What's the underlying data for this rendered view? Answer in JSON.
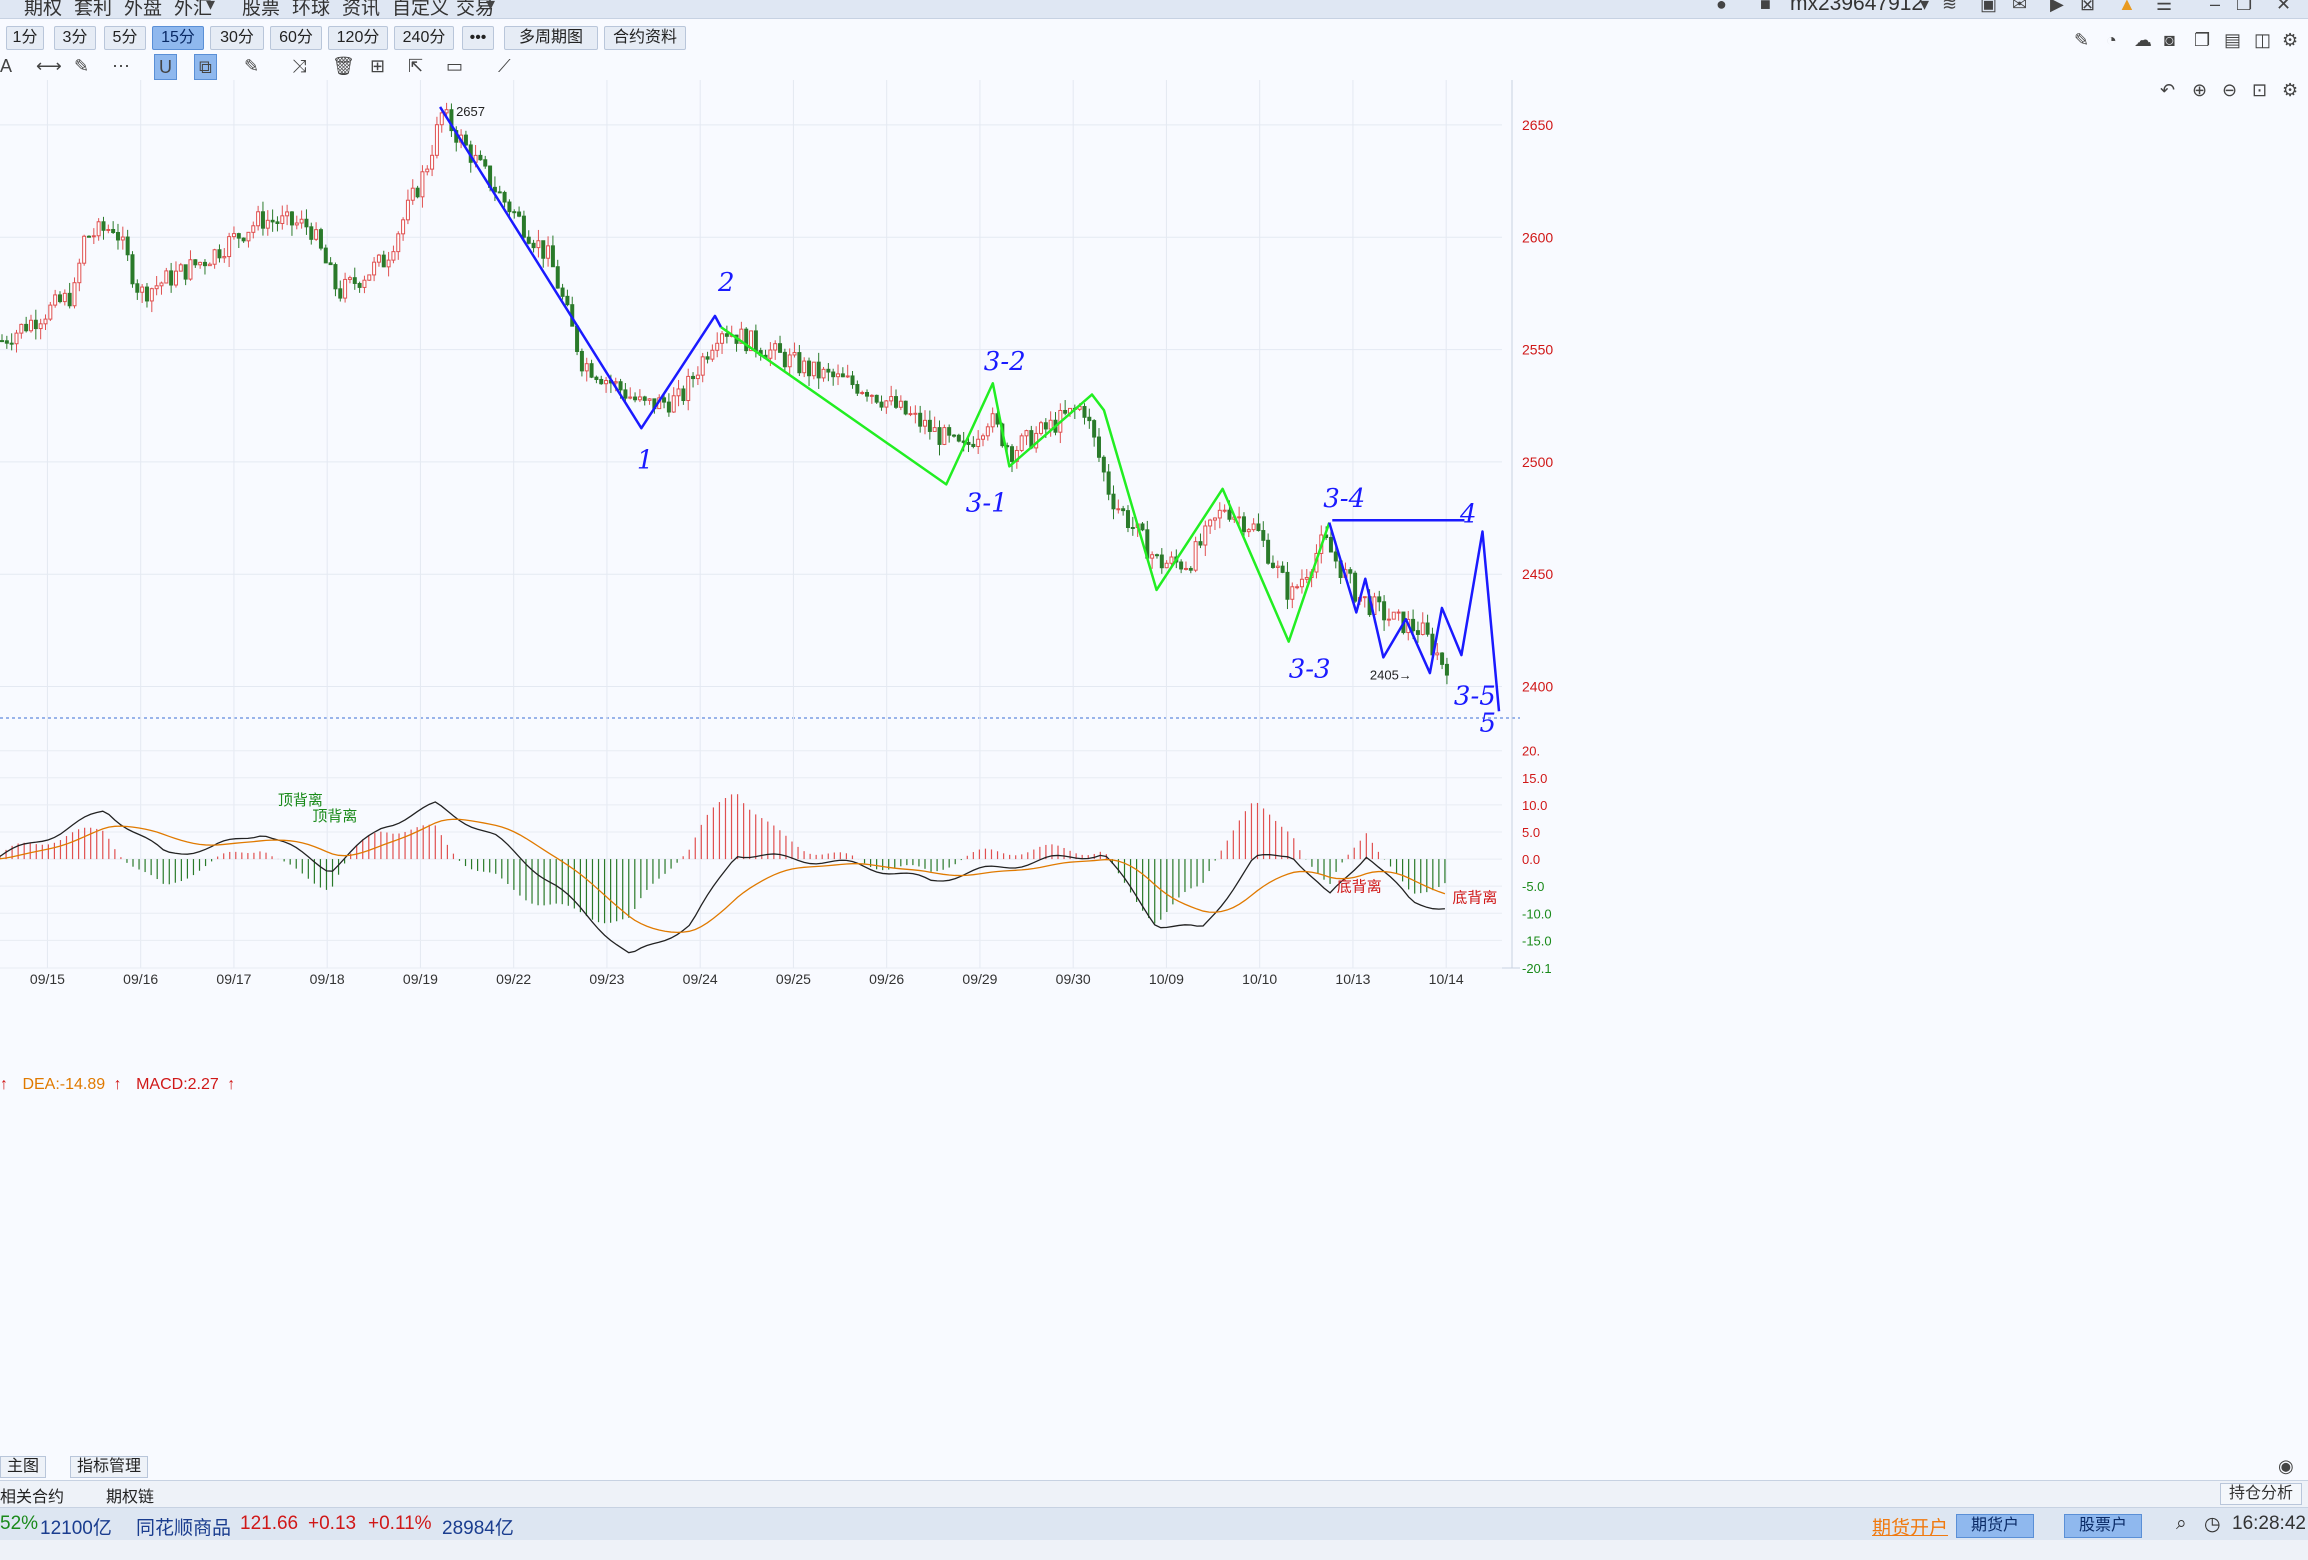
{
  "menu": [
    "期权",
    "套利",
    "外盘",
    "外汇",
    "股票",
    "环球",
    "资讯",
    "自定义",
    "交易"
  ],
  "user": {
    "name": "mx239647912"
  },
  "periods": [
    {
      "label": "1分",
      "active": false
    },
    {
      "label": "3分",
      "active": false
    },
    {
      "label": "5分",
      "active": false
    },
    {
      "label": "15分",
      "active": true
    },
    {
      "label": "30分",
      "active": false
    },
    {
      "label": "60分",
      "active": false
    },
    {
      "label": "120分",
      "active": false
    },
    {
      "label": "240分",
      "active": false
    }
  ],
  "toolbar": {
    "more": "•••",
    "multi": "多周期图",
    "contract_info": "合约资料"
  },
  "chart_data": [
    {
      "type": "line",
      "subtype": "candlestick",
      "x_dates": [
        "09/15",
        "09/16",
        "09/17",
        "09/18",
        "09/19",
        "09/22",
        "09/23",
        "09/24",
        "09/25",
        "09/26",
        "09/29",
        "09/30",
        "10/09",
        "10/10",
        "10/13",
        "10/14"
      ],
      "y_ticks": [
        2400,
        2450,
        2500,
        2550,
        2600,
        2650
      ],
      "ylim": [
        2386,
        2670
      ],
      "annotations": [
        "2657",
        "2405"
      ],
      "series": [
        {
          "color": "#1a1aff",
          "points": [
            {
              "x": 0.293,
              "y": 2658
            },
            {
              "x": 0.427,
              "y": 2515
            },
            {
              "x": 0.476,
              "y": 2565
            },
            {
              "x": 0.48,
              "y": 2560
            }
          ]
        },
        {
          "color": "#22ee22",
          "points": [
            {
              "x": 0.48,
              "y": 2560
            },
            {
              "x": 0.63,
              "y": 2490
            },
            {
              "x": 0.661,
              "y": 2535
            },
            {
              "x": 0.672,
              "y": 2498
            },
            {
              "x": 0.727,
              "y": 2530
            },
            {
              "x": 0.735,
              "y": 2523
            },
            {
              "x": 0.77,
              "y": 2443
            },
            {
              "x": 0.814,
              "y": 2488
            },
            {
              "x": 0.858,
              "y": 2420
            },
            {
              "x": 0.885,
              "y": 2473
            }
          ]
        },
        {
          "color": "#1a1aff",
          "points": [
            {
              "x": 0.885,
              "y": 2473
            },
            {
              "x": 0.903,
              "y": 2433
            },
            {
              "x": 0.909,
              "y": 2448
            },
            {
              "x": 0.921,
              "y": 2413
            },
            {
              "x": 0.936,
              "y": 2430
            },
            {
              "x": 0.952,
              "y": 2406
            },
            {
              "x": 0.96,
              "y": 2435
            },
            {
              "x": 0.973,
              "y": 2414
            },
            {
              "x": 0.987,
              "y": 2469
            },
            {
              "x": 0.998,
              "y": 2389
            }
          ]
        },
        {
          "color": "#1a1aff",
          "points": [
            {
              "x": 0.887,
              "y": 2474
            },
            {
              "x": 0.975,
              "y": 2474
            }
          ]
        }
      ],
      "wave_labels": [
        "1",
        "2",
        "3-2",
        "3-1",
        "3-3",
        "3-4",
        "3-5",
        "4",
        "5"
      ]
    },
    {
      "type": "line",
      "subtype": "macd",
      "legend": [
        "DEA:-14.89",
        "MACD:2.27"
      ],
      "y_ticks": [
        "20.",
        "15.0",
        "10.0",
        "5.0",
        "0.0",
        "-5.0",
        "-10.0",
        "-15.0",
        "-20.1"
      ],
      "ylim": [
        -20.1,
        20.5
      ],
      "annotations": [
        "顶背离",
        "顶背离",
        "底背离",
        "底背离"
      ]
    }
  ],
  "bottom_tabs": {
    "main": "主图",
    "indicator": "指标管理"
  },
  "status_tabs": {
    "related": "相关合约",
    "options": "期权链",
    "position": "持仓分析"
  },
  "status": {
    "pct_left": "52%",
    "amount_left": "12100亿",
    "commodity_name": "同花顺商品",
    "commodity_price": "121.66",
    "commodity_change": "+0.13",
    "commodity_pct": "+0.11%",
    "commodity_amount": "28984亿",
    "open_account": "期货开户",
    "futures_account": "期货户",
    "stock_account": "股票户",
    "time": "16:28:42"
  }
}
